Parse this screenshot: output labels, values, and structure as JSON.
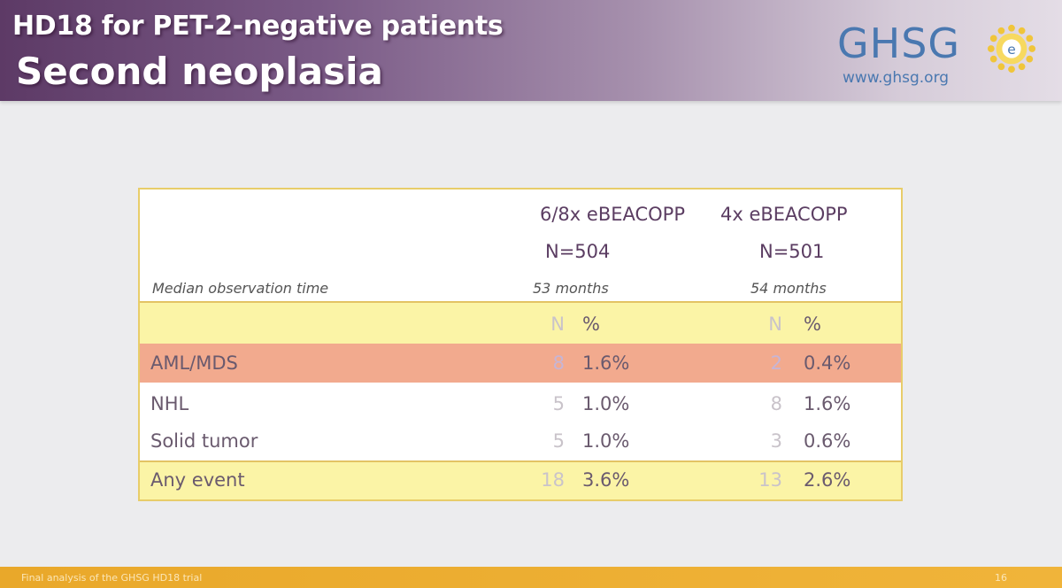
{
  "header": {
    "title": "HD18 for PET-2-negative patients",
    "subtitle": "Second neoplasia",
    "logo": {
      "name": "GHSG",
      "url": "www.ghsg.org",
      "color": "#4a78b0"
    }
  },
  "table": {
    "arm1": {
      "name": "6/8x eBEACOPP",
      "n": "N=504",
      "observation": "53 months"
    },
    "arm2": {
      "name": "4x eBEACOPP",
      "n": "N=501",
      "observation": "54 months"
    },
    "observation_label": "Median observation time",
    "col_n": "N",
    "col_pct": "%",
    "rows": [
      {
        "label": "AML/MDS",
        "arm1_n": "8",
        "arm1_pct": "1.6%",
        "arm2_n": "2",
        "arm2_pct": "0.4%",
        "highlight": "#f2aa8e"
      },
      {
        "label": "NHL",
        "arm1_n": "5",
        "arm1_pct": "1.0%",
        "arm2_n": "8",
        "arm2_pct": "1.6%"
      },
      {
        "label": "Solid tumor",
        "arm1_n": "5",
        "arm1_pct": "1.0%",
        "arm2_n": "3",
        "arm2_pct": "0.6%"
      },
      {
        "label": "Any event",
        "arm1_n": "18",
        "arm1_pct": "3.6%",
        "arm2_n": "13",
        "arm2_pct": "2.6%",
        "highlight": "#fbf4a6"
      }
    ]
  },
  "footer": {
    "text": "Final analysis of the GHSG HD18 trial",
    "page": "16"
  },
  "colors": {
    "header_gradient_start": "#5d3a66",
    "table_border": "#e8cd6a",
    "footer": "#e9a82a"
  }
}
